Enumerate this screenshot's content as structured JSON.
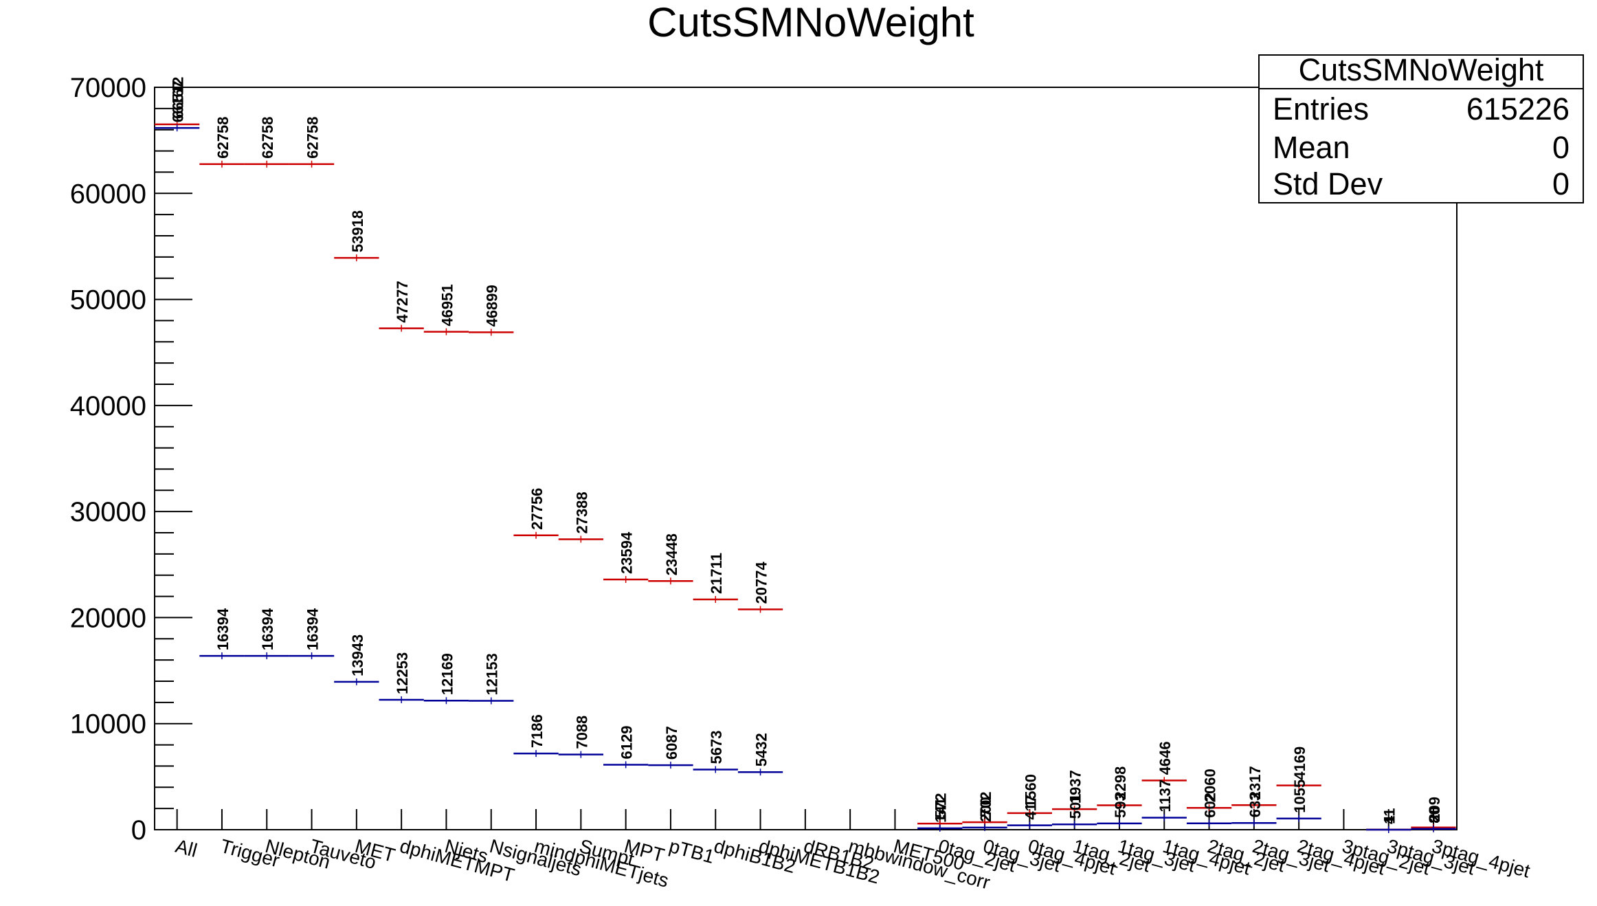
{
  "chart_data": {
    "type": "bar",
    "title": "CutsSMNoWeight",
    "xlabel": "",
    "ylabel": "",
    "ylim": [
      0,
      70000
    ],
    "y_ticks": [
      "0",
      "10000",
      "20000",
      "30000",
      "40000",
      "50000",
      "60000",
      "70000"
    ],
    "grid": false,
    "legend": "none",
    "categories": [
      "All",
      "Trigger",
      "Nlepton",
      "Tauveto",
      "MET",
      "dphiMETMPT",
      "Njets",
      "Nsignaljets",
      "mindphiMETjets",
      "Sumpt",
      "MPT",
      "pTB1",
      "dphiB1B2",
      "dphiMETB1B2",
      "dRB1B2",
      "mbbwindow_corr",
      "MET500",
      "0tag_2jet",
      "0tag_3jet",
      "0tag_4pjet",
      "1tag_2jet",
      "1tag_3jet",
      "1tag_4pjet",
      "2tag_2jet",
      "2tag_3jet",
      "2tag_4pjet",
      "3ptag_2jet",
      "3ptag_3jet",
      "3ptag_4pjet"
    ],
    "series": [
      {
        "color": "#cc0000",
        "values": [
          66512,
          62758,
          62758,
          62758,
          53918,
          47277,
          46951,
          46899,
          27756,
          27388,
          23594,
          23448,
          21711,
          20774,
          null,
          null,
          null,
          572,
          702,
          1560,
          1937,
          2298,
          4646,
          2060,
          2317,
          4169,
          null,
          11,
          209
        ],
        "labels": [
          "66512",
          "62758",
          "62758",
          "62758",
          "53918",
          "47277",
          "46951",
          "46899",
          "27756",
          "27388",
          "23594",
          "23448",
          "21711",
          "20774",
          "",
          "",
          "",
          "572",
          "702",
          "1560",
          "1937",
          "2298",
          "4646",
          "2060",
          "2317",
          "4169",
          "",
          "11",
          "209"
        ]
      },
      {
        "color": "#000099",
        "values": [
          66167,
          16394,
          16394,
          16394,
          13943,
          12253,
          12169,
          12153,
          7186,
          7088,
          6129,
          6087,
          5673,
          5432,
          null,
          null,
          null,
          141,
          200,
          417,
          501,
          593,
          1137,
          602,
          633,
          1055,
          null,
          4,
          80
        ],
        "labels": [
          "66167",
          "16394",
          "16394",
          "16394",
          "13943",
          "12253",
          "12169",
          "12153",
          "7186",
          "7088",
          "6129",
          "6087",
          "5673",
          "5432",
          "",
          "",
          "",
          "141",
          "200",
          "417",
          "501",
          "593",
          "1137",
          "602",
          "633",
          "1055",
          "",
          "4",
          "80"
        ]
      }
    ],
    "stats_box": {
      "title": "CutsSMNoWeight",
      "rows": [
        {
          "label": "Entries",
          "value": "615226"
        },
        {
          "label": "Mean",
          "value": "0"
        },
        {
          "label": "Std Dev",
          "value": "0"
        }
      ]
    }
  }
}
